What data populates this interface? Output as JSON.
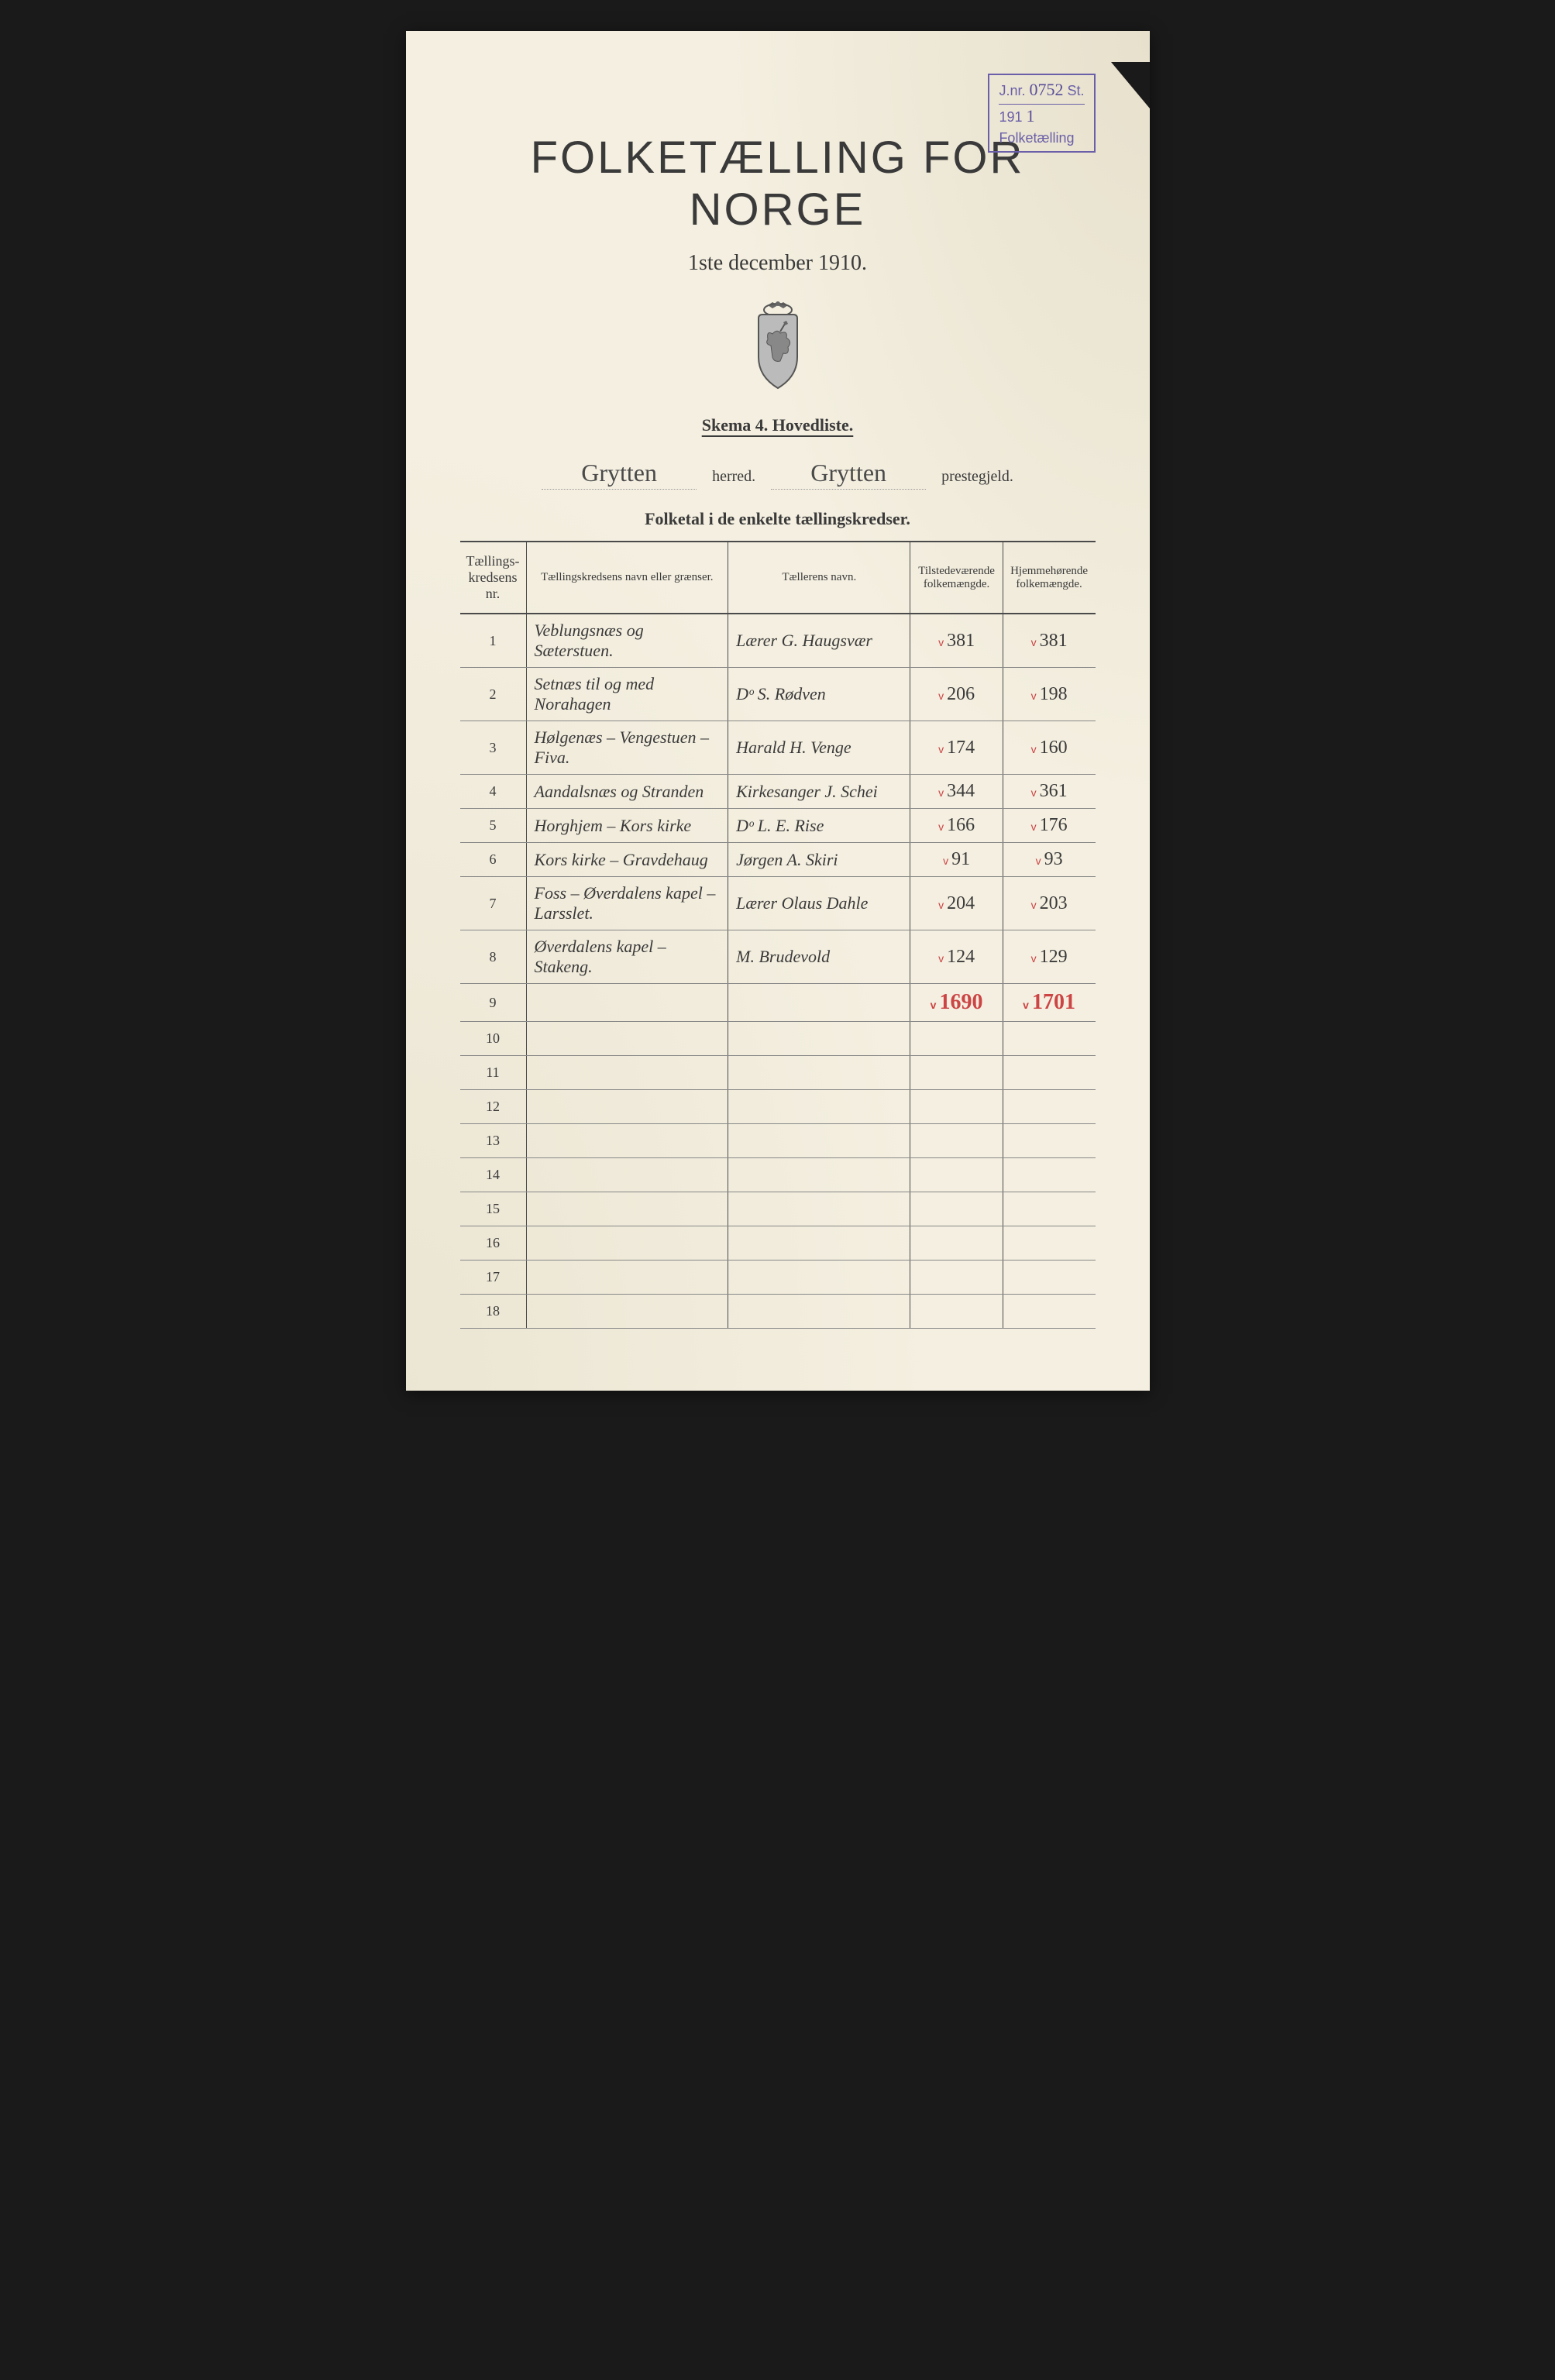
{
  "stamp": {
    "jnr_label": "J.nr.",
    "jnr_number": "0752",
    "suffix": "St.",
    "year": "191",
    "year_digit": "1",
    "word": "Folketælling"
  },
  "title": "FOLKETÆLLING FOR NORGE",
  "subtitle": "1ste december 1910.",
  "skema": "Skema 4.   Hovedliste.",
  "herred_value": "Grytten",
  "herred_label": "herred.",
  "prestegjeld_value": "Grytten",
  "prestegjeld_label": "prestegjeld.",
  "folketal_heading": "Folketal i de enkelte tællingskredser.",
  "columns": {
    "nr": "Tællings-kredsens nr.",
    "navn": "Tællingskredsens navn eller grænser.",
    "taeller": "Tællerens navn.",
    "tilst": "Tilstedeværende folkemængde.",
    "hjem": "Hjemmehørende folkemængde."
  },
  "rows": [
    {
      "nr": "1",
      "navn": "Veblungsnæs og Sæterstuen.",
      "taeller": "Lærer G. Haugsvær",
      "tilst": "381",
      "hjem": "381"
    },
    {
      "nr": "2",
      "navn": "Setnæs til og med Norahagen",
      "taeller": "Dᵒ   S. Rødven",
      "tilst": "206",
      "hjem": "198"
    },
    {
      "nr": "3",
      "navn": "Hølgenæs – Vengestuen – Fiva.",
      "taeller": "Harald H. Venge",
      "tilst": "174",
      "hjem": "160"
    },
    {
      "nr": "4",
      "navn": "Aandalsnæs og Stranden",
      "taeller": "Kirkesanger J. Schei",
      "tilst": "344",
      "hjem": "361"
    },
    {
      "nr": "5",
      "navn": "Horghjem – Kors kirke",
      "taeller": "Dᵒ   L. E. Rise",
      "tilst": "166",
      "hjem": "176"
    },
    {
      "nr": "6",
      "navn": "Kors kirke – Gravdehaug",
      "taeller": "Jørgen A. Skiri",
      "tilst": "91",
      "hjem": "93"
    },
    {
      "nr": "7",
      "navn": "Foss – Øverdalens kapel – Larsslet.",
      "taeller": "Lærer Olaus Dahle",
      "tilst": "204",
      "hjem": "203"
    },
    {
      "nr": "8",
      "navn": "Øverdalens kapel – Stakeng.",
      "taeller": "M. Brudevold",
      "tilst": "124",
      "hjem": "129"
    }
  ],
  "totals": {
    "tilst": "1690",
    "hjem": "1701"
  },
  "empty_rows": [
    "9",
    "10",
    "11",
    "12",
    "13",
    "14",
    "15",
    "16",
    "17",
    "18"
  ],
  "colors": {
    "paper": "#f4efe0",
    "ink": "#3a3a3a",
    "stamp": "#6a5fa8",
    "red": "#c44",
    "background": "#1a1a1a"
  }
}
